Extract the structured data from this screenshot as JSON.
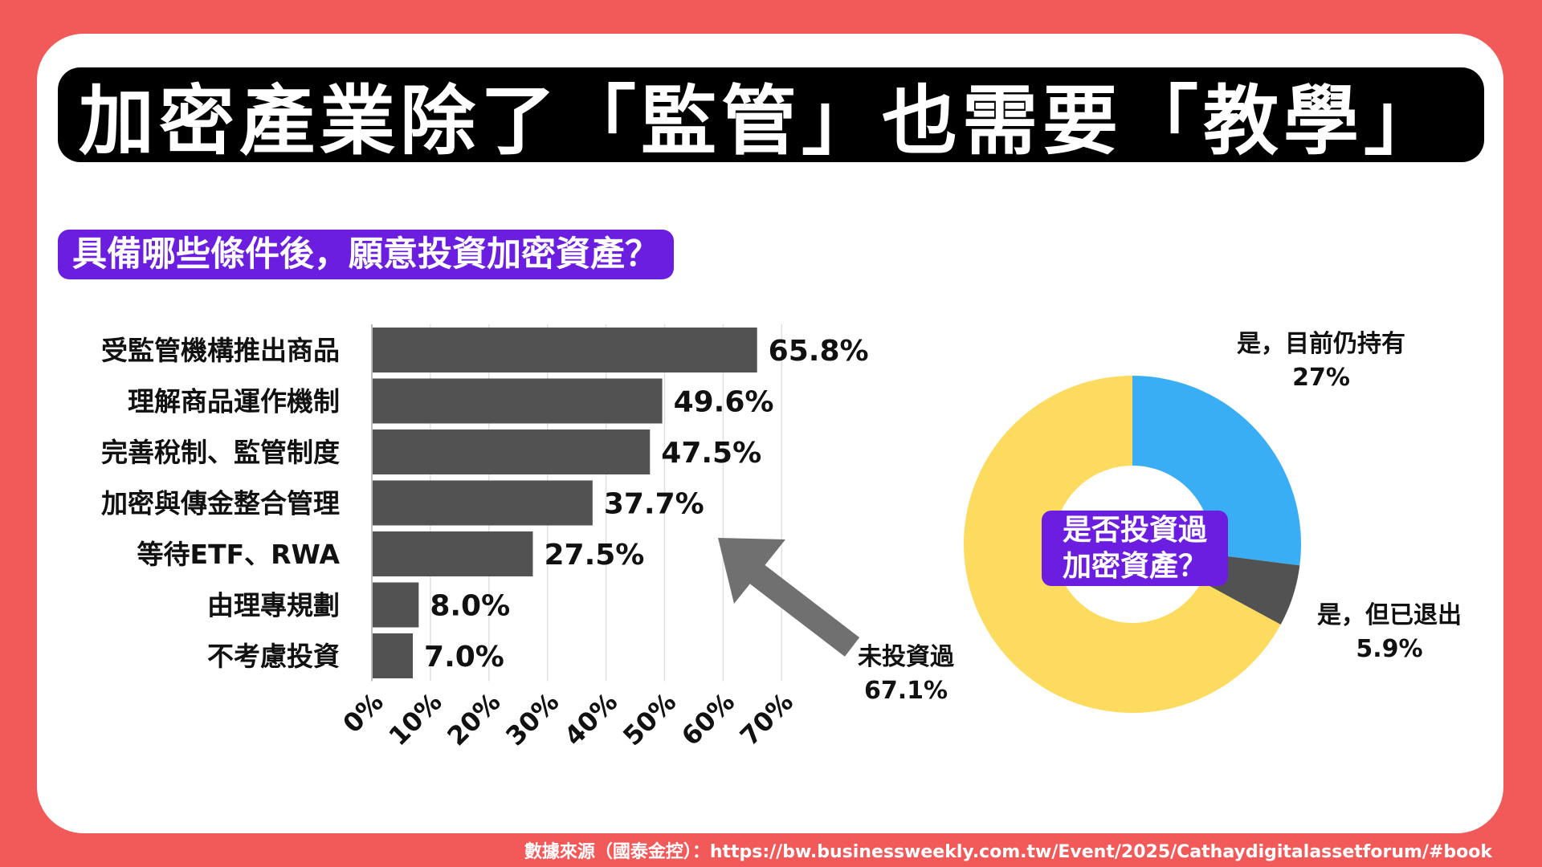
{
  "title": "加密產業除了「監管」也需要「教學」",
  "colors": {
    "background": "#f25a5a",
    "title_bg": "#000000",
    "label_bg": "#6c1ee0",
    "bar": "#525252",
    "arrow": "#707070",
    "pie_invested_holding": "#3aaef5",
    "pie_invested_exited": "#525252",
    "pie_not_invested": "#fddb5f"
  },
  "chart_data": [
    {
      "type": "bar",
      "orientation": "horizontal",
      "title": "具備哪些條件後，願意投資加密資產？",
      "categories": [
        "受監管機構推出商品",
        "理解商品運作機制",
        "完善稅制、監管制度",
        "加密與傳金整合管理",
        "等待ETF、RWA",
        "由理專規劃",
        "不考慮投資"
      ],
      "values": [
        65.8,
        49.6,
        47.5,
        37.7,
        27.5,
        8.0,
        7.0
      ],
      "value_labels": [
        "65.8%",
        "49.6%",
        "47.5%",
        "37.7%",
        "27.5%",
        "8.0%",
        "7.0%"
      ],
      "xticks": [
        "0%",
        "10%",
        "20%",
        "30%",
        "40%",
        "50%",
        "60%",
        "70%"
      ],
      "xlim": [
        0,
        70
      ],
      "grid": true
    },
    {
      "type": "pie",
      "donut": true,
      "center_label": [
        "是否投資過",
        "加密資產？"
      ],
      "slices": [
        {
          "label": "是，目前仍持有",
          "value": 27,
          "value_label": "27%"
        },
        {
          "label": "是，但已退出",
          "value": 5.9,
          "value_label": "5.9%"
        },
        {
          "label": "未投資過",
          "value": 67.1,
          "value_label": "67.1%"
        }
      ]
    }
  ],
  "source": "數據來源（國泰金控）：https://bw.businessweekly.com.tw/Event/2025/Cathaydigitalassetforum/#book"
}
